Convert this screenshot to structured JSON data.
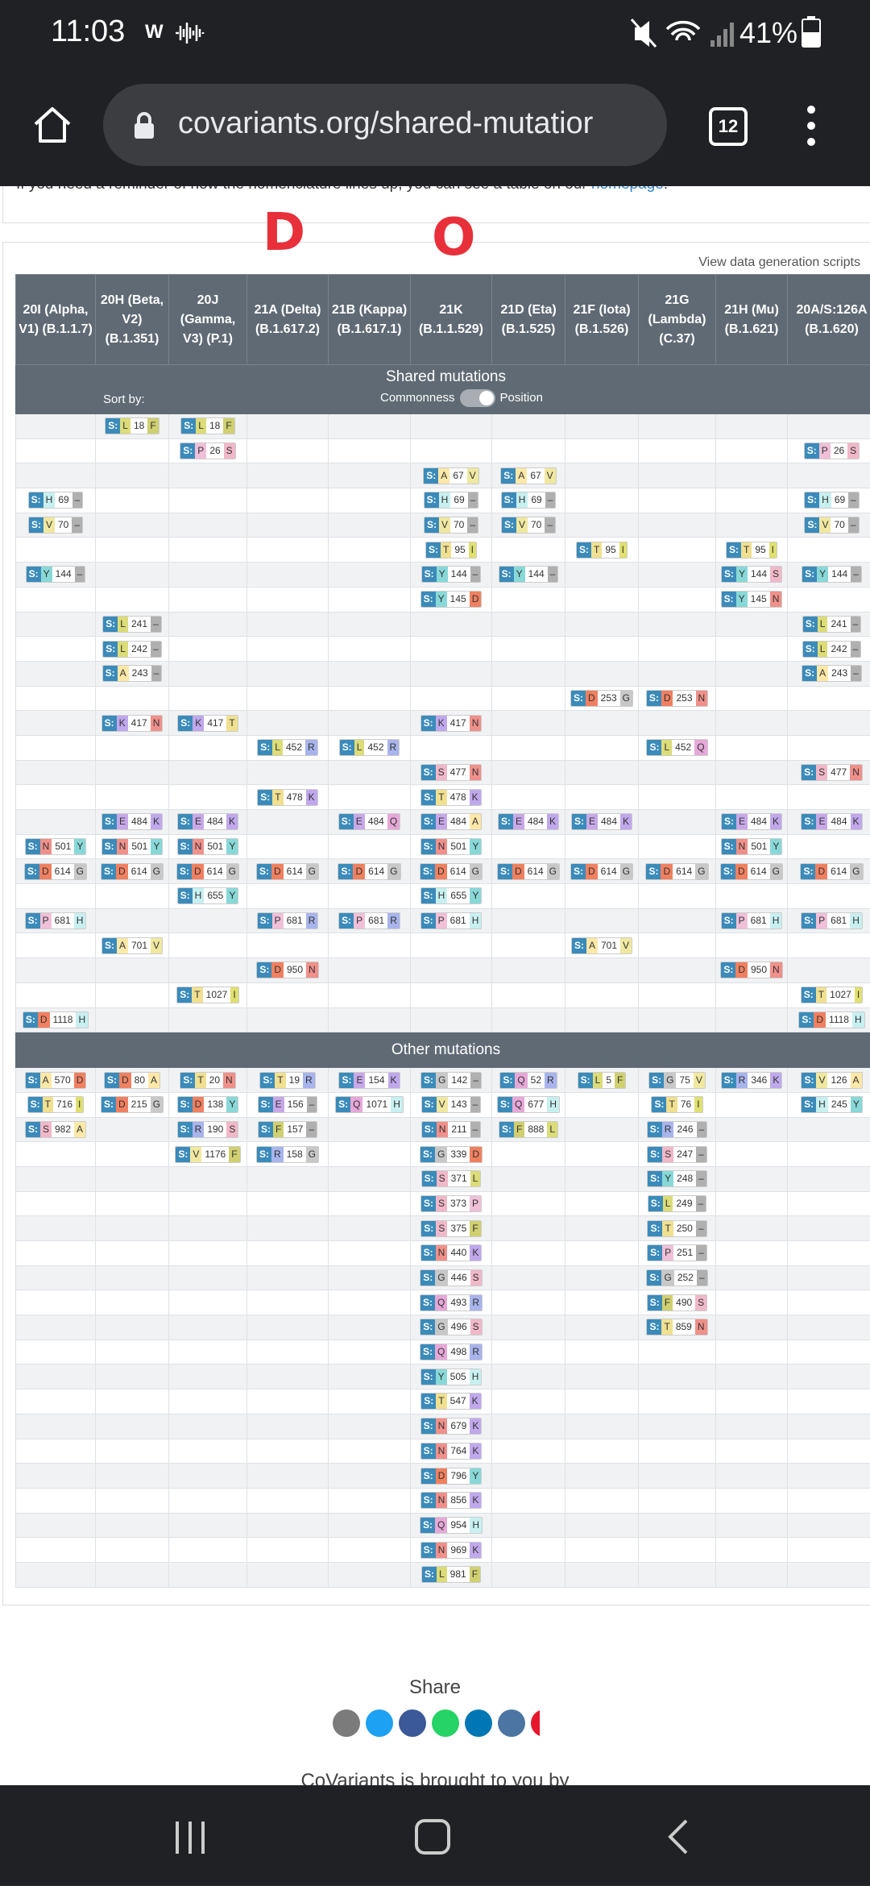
{
  "status": {
    "time": "11:03",
    "app": "W",
    "battery": "41%"
  },
  "browser": {
    "url": "covariants.org/shared-mutatior",
    "tabs": 12
  },
  "notice": {
    "text": "If you need a reminder of how the nomenclature lines up, you can see a table on our ",
    "link": "homepage",
    "end": "!"
  },
  "annotations": [
    "D",
    "O"
  ],
  "scripts_link": "View data generation scripts",
  "gene": "S:",
  "aa_colors": {
    "A": "#fde8a8",
    "R": "#a8b4ec",
    "N": "#f0908a",
    "D": "#f08060",
    "Q": "#e6a8d8",
    "E": "#c8a8e8",
    "G": "#c8c8c8",
    "H": "#c8f0f0",
    "I": "#e0e070",
    "L": "#dcdc78",
    "K": "#c0a8ec",
    "F": "#d0d070",
    "P": "#f0c0d8",
    "S": "#f0b8c8",
    "T": "#f0e090",
    "Y": "#88d8d8",
    "V": "#f0e8a0",
    "–": "#b0b0b0"
  },
  "table": {
    "columns": [
      "20I (Alpha, V1) (B.1.1.7)",
      "20H (Beta, V2) (B.1.351)",
      "20J (Gamma, V3) (P.1)",
      "21A (Delta) (B.1.617.2)",
      "21B (Kappa) (B.1.617.1)",
      "21K (B.1.1.529)",
      "21D (Eta) (B.1.525)",
      "21F (Iota) (B.1.526)",
      "21G (Lambda) (C.37)",
      "21H (Mu) (B.1.621)",
      "20A/S:126A (B.1.620)"
    ],
    "shared": {
      "title": "Shared mutations",
      "sort_label": "Sort by:",
      "toggle_left": "Commonness",
      "toggle_right": "Position",
      "rows": [
        [
          null,
          [
            "L",
            18,
            "F"
          ],
          [
            "L",
            18,
            "F"
          ],
          null,
          null,
          null,
          null,
          null,
          null,
          null,
          null
        ],
        [
          null,
          null,
          [
            "P",
            26,
            "S"
          ],
          null,
          null,
          null,
          null,
          null,
          null,
          null,
          [
            "P",
            26,
            "S"
          ]
        ],
        [
          null,
          null,
          null,
          null,
          null,
          [
            "A",
            67,
            "V"
          ],
          [
            "A",
            67,
            "V"
          ],
          null,
          null,
          null,
          null
        ],
        [
          [
            "H",
            69,
            "–"
          ],
          null,
          null,
          null,
          null,
          [
            "H",
            69,
            "–"
          ],
          [
            "H",
            69,
            "–"
          ],
          null,
          null,
          null,
          [
            "H",
            69,
            "–"
          ]
        ],
        [
          [
            "V",
            70,
            "–"
          ],
          null,
          null,
          null,
          null,
          [
            "V",
            70,
            "–"
          ],
          [
            "V",
            70,
            "–"
          ],
          null,
          null,
          null,
          [
            "V",
            70,
            "–"
          ]
        ],
        [
          null,
          null,
          null,
          null,
          null,
          [
            "T",
            95,
            "I"
          ],
          null,
          [
            "T",
            95,
            "I"
          ],
          null,
          [
            "T",
            95,
            "I"
          ],
          null
        ],
        [
          [
            "Y",
            144,
            "–"
          ],
          null,
          null,
          null,
          null,
          [
            "Y",
            144,
            "–"
          ],
          [
            "Y",
            144,
            "–"
          ],
          null,
          null,
          [
            "Y",
            144,
            "S"
          ],
          [
            "Y",
            144,
            "–"
          ]
        ],
        [
          null,
          null,
          null,
          null,
          null,
          [
            "Y",
            145,
            "D"
          ],
          null,
          null,
          null,
          [
            "Y",
            145,
            "N"
          ],
          null
        ],
        [
          null,
          [
            "L",
            241,
            "–"
          ],
          null,
          null,
          null,
          null,
          null,
          null,
          null,
          null,
          [
            "L",
            241,
            "–"
          ]
        ],
        [
          null,
          [
            "L",
            242,
            "–"
          ],
          null,
          null,
          null,
          null,
          null,
          null,
          null,
          null,
          [
            "L",
            242,
            "–"
          ]
        ],
        [
          null,
          [
            "A",
            243,
            "–"
          ],
          null,
          null,
          null,
          null,
          null,
          null,
          null,
          null,
          [
            "A",
            243,
            "–"
          ]
        ],
        [
          null,
          null,
          null,
          null,
          null,
          null,
          null,
          [
            "D",
            253,
            "G"
          ],
          [
            "D",
            253,
            "N"
          ],
          null,
          null
        ],
        [
          null,
          [
            "K",
            417,
            "N"
          ],
          [
            "K",
            417,
            "T"
          ],
          null,
          null,
          [
            "K",
            417,
            "N"
          ],
          null,
          null,
          null,
          null,
          null
        ],
        [
          null,
          null,
          null,
          [
            "L",
            452,
            "R"
          ],
          [
            "L",
            452,
            "R"
          ],
          null,
          null,
          null,
          [
            "L",
            452,
            "Q"
          ],
          null,
          null
        ],
        [
          null,
          null,
          null,
          null,
          null,
          [
            "S",
            477,
            "N"
          ],
          null,
          null,
          null,
          null,
          [
            "S",
            477,
            "N"
          ]
        ],
        [
          null,
          null,
          null,
          [
            "T",
            478,
            "K"
          ],
          null,
          [
            "T",
            478,
            "K"
          ],
          null,
          null,
          null,
          null,
          null
        ],
        [
          null,
          [
            "E",
            484,
            "K"
          ],
          [
            "E",
            484,
            "K"
          ],
          null,
          [
            "E",
            484,
            "Q"
          ],
          [
            "E",
            484,
            "A"
          ],
          [
            "E",
            484,
            "K"
          ],
          [
            "E",
            484,
            "K"
          ],
          null,
          [
            "E",
            484,
            "K"
          ],
          [
            "E",
            484,
            "K"
          ]
        ],
        [
          [
            "N",
            501,
            "Y"
          ],
          [
            "N",
            501,
            "Y"
          ],
          [
            "N",
            501,
            "Y"
          ],
          null,
          null,
          [
            "N",
            501,
            "Y"
          ],
          null,
          null,
          null,
          [
            "N",
            501,
            "Y"
          ],
          null
        ],
        [
          [
            "D",
            614,
            "G"
          ],
          [
            "D",
            614,
            "G"
          ],
          [
            "D",
            614,
            "G"
          ],
          [
            "D",
            614,
            "G"
          ],
          [
            "D",
            614,
            "G"
          ],
          [
            "D",
            614,
            "G"
          ],
          [
            "D",
            614,
            "G"
          ],
          [
            "D",
            614,
            "G"
          ],
          [
            "D",
            614,
            "G"
          ],
          [
            "D",
            614,
            "G"
          ],
          [
            "D",
            614,
            "G"
          ]
        ],
        [
          null,
          null,
          [
            "H",
            655,
            "Y"
          ],
          null,
          null,
          [
            "H",
            655,
            "Y"
          ],
          null,
          null,
          null,
          null,
          null
        ],
        [
          [
            "P",
            681,
            "H"
          ],
          null,
          null,
          [
            "P",
            681,
            "R"
          ],
          [
            "P",
            681,
            "R"
          ],
          [
            "P",
            681,
            "H"
          ],
          null,
          null,
          null,
          [
            "P",
            681,
            "H"
          ],
          [
            "P",
            681,
            "H"
          ]
        ],
        [
          null,
          [
            "A",
            701,
            "V"
          ],
          null,
          null,
          null,
          null,
          null,
          [
            "A",
            701,
            "V"
          ],
          null,
          null,
          null
        ],
        [
          null,
          null,
          null,
          [
            "D",
            950,
            "N"
          ],
          null,
          null,
          null,
          null,
          null,
          [
            "D",
            950,
            "N"
          ],
          null
        ],
        [
          null,
          null,
          [
            "T",
            1027,
            "I"
          ],
          null,
          null,
          null,
          null,
          null,
          null,
          null,
          [
            "T",
            1027,
            "I"
          ]
        ],
        [
          [
            "D",
            1118,
            "H"
          ],
          null,
          null,
          null,
          null,
          null,
          null,
          null,
          null,
          null,
          [
            "D",
            1118,
            "H"
          ]
        ]
      ]
    },
    "other": {
      "title": "Other mutations",
      "columns": [
        [
          [
            "A",
            570,
            "D"
          ],
          [
            "T",
            716,
            "I"
          ],
          [
            "S",
            982,
            "A"
          ]
        ],
        [
          [
            "D",
            80,
            "A"
          ],
          [
            "D",
            215,
            "G"
          ]
        ],
        [
          [
            "T",
            20,
            "N"
          ],
          [
            "D",
            138,
            "Y"
          ],
          [
            "R",
            190,
            "S"
          ],
          [
            "V",
            1176,
            "F"
          ]
        ],
        [
          [
            "T",
            19,
            "R"
          ],
          [
            "E",
            156,
            "–"
          ],
          [
            "F",
            157,
            "–"
          ],
          [
            "R",
            158,
            "G"
          ]
        ],
        [
          [
            "E",
            154,
            "K"
          ],
          [
            "Q",
            1071,
            "H"
          ]
        ],
        [
          [
            "G",
            142,
            "–"
          ],
          [
            "V",
            143,
            "–"
          ],
          [
            "N",
            211,
            "–"
          ],
          [
            "G",
            339,
            "D"
          ],
          [
            "S",
            371,
            "L"
          ],
          [
            "S",
            373,
            "P"
          ],
          [
            "S",
            375,
            "F"
          ],
          [
            "N",
            440,
            "K"
          ],
          [
            "G",
            446,
            "S"
          ],
          [
            "Q",
            493,
            "R"
          ],
          [
            "G",
            496,
            "S"
          ],
          [
            "Q",
            498,
            "R"
          ],
          [
            "Y",
            505,
            "H"
          ],
          [
            "T",
            547,
            "K"
          ],
          [
            "N",
            679,
            "K"
          ],
          [
            "N",
            764,
            "K"
          ],
          [
            "D",
            796,
            "Y"
          ],
          [
            "N",
            856,
            "K"
          ],
          [
            "Q",
            954,
            "H"
          ],
          [
            "N",
            969,
            "K"
          ],
          [
            "L",
            981,
            "F"
          ]
        ],
        [
          [
            "Q",
            52,
            "R"
          ],
          [
            "Q",
            677,
            "H"
          ],
          [
            "F",
            888,
            "L"
          ]
        ],
        [
          [
            "L",
            5,
            "F"
          ]
        ],
        [
          [
            "G",
            75,
            "V"
          ],
          [
            "T",
            76,
            "I"
          ],
          [
            "R",
            246,
            "–"
          ],
          [
            "S",
            247,
            "–"
          ],
          [
            "Y",
            248,
            "–"
          ],
          [
            "L",
            249,
            "–"
          ],
          [
            "T",
            250,
            "–"
          ],
          [
            "P",
            251,
            "–"
          ],
          [
            "G",
            252,
            "–"
          ],
          [
            "F",
            490,
            "S"
          ],
          [
            "T",
            859,
            "N"
          ]
        ],
        [
          [
            "R",
            346,
            "K"
          ]
        ],
        [
          [
            "V",
            126,
            "A"
          ],
          [
            "H",
            245,
            "Y"
          ]
        ]
      ]
    }
  },
  "share": {
    "title": "Share"
  },
  "footer_text": "CoVariants is brought to you by"
}
